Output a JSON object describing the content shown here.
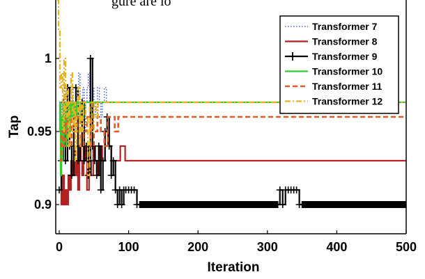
{
  "top_caption_fragment": "gure are lo",
  "chart_data": {
    "type": "line",
    "title": "",
    "xlabel": "Iteration",
    "ylabel": "Tap",
    "xlim": [
      -5,
      500
    ],
    "ylim": [
      0.88,
      1.04
    ],
    "xticks": [
      0,
      100,
      200,
      300,
      400,
      500
    ],
    "xtick_labels": [
      "0",
      "100",
      "200",
      "300",
      "400",
      "500"
    ],
    "yticks": [
      0.9,
      0.95,
      1
    ],
    "ytick_labels": [
      "0.9",
      "0.95",
      "1"
    ],
    "grid": false,
    "legend_position": "top-right",
    "series": [
      {
        "name": "Transformer 7",
        "color": "#4a5fc1",
        "style": "dotted",
        "x": [
          0,
          2,
          4,
          6,
          8,
          10,
          12,
          14,
          16,
          18,
          20,
          22,
          24,
          26,
          28,
          30,
          32,
          34,
          36,
          38,
          40,
          42,
          44,
          46,
          48,
          50,
          52,
          55,
          58,
          60,
          62,
          65,
          68,
          70,
          500
        ],
        "y": [
          0.96,
          0.95,
          0.97,
          0.94,
          0.98,
          0.96,
          0.95,
          0.97,
          0.96,
          0.98,
          0.97,
          0.95,
          0.96,
          0.98,
          0.99,
          0.97,
          0.96,
          0.98,
          0.95,
          0.97,
          0.98,
          0.99,
          0.97,
          0.96,
          0.98,
          0.97,
          0.96,
          0.98,
          0.97,
          0.96,
          0.97,
          0.98,
          0.97,
          0.97,
          0.97
        ]
      },
      {
        "name": "Transformer 8",
        "color": "#b22222",
        "style": "solid",
        "x": [
          0,
          3,
          5,
          7,
          9,
          11,
          13,
          15,
          17,
          19,
          21,
          23,
          25,
          27,
          29,
          31,
          33,
          35,
          37,
          40,
          43,
          46,
          49,
          52,
          55,
          58,
          62,
          66,
          70,
          75,
          80,
          85,
          88,
          92,
          95,
          500
        ],
        "y": [
          0.91,
          0.9,
          0.92,
          0.9,
          0.91,
          0.9,
          0.92,
          0.91,
          0.93,
          0.92,
          0.94,
          0.92,
          0.93,
          0.91,
          0.94,
          0.93,
          0.92,
          0.94,
          0.93,
          0.91,
          0.93,
          0.92,
          0.94,
          0.93,
          0.92,
          0.94,
          0.93,
          0.95,
          0.94,
          0.93,
          0.93,
          0.93,
          0.94,
          0.94,
          0.93,
          0.93
        ]
      },
      {
        "name": "Transformer 9",
        "color": "#000000",
        "style": "solid-plus",
        "x": [
          0,
          3,
          6,
          9,
          12,
          15,
          18,
          21,
          24,
          27,
          30,
          33,
          36,
          39,
          42,
          45,
          48,
          51,
          54,
          57,
          60,
          63,
          66,
          69,
          72,
          75,
          78,
          81,
          84,
          87,
          90,
          93,
          96,
          100,
          104,
          108,
          112,
          116,
          315,
          318,
          322,
          326,
          330,
          334,
          338,
          342,
          346,
          350,
          500
        ],
        "y": [
          0.91,
          0.93,
          0.97,
          0.93,
          0.98,
          0.94,
          0.92,
          0.96,
          0.98,
          0.93,
          0.94,
          0.97,
          0.93,
          0.94,
          0.92,
          1.0,
          0.94,
          0.93,
          0.92,
          0.94,
          0.91,
          0.93,
          0.95,
          0.96,
          0.94,
          0.92,
          0.93,
          0.91,
          0.9,
          0.91,
          0.9,
          0.91,
          0.91,
          0.91,
          0.91,
          0.91,
          0.9,
          0.9,
          0.9,
          0.91,
          0.9,
          0.91,
          0.91,
          0.91,
          0.91,
          0.91,
          0.9,
          0.9,
          0.9
        ]
      },
      {
        "name": "Transformer 10",
        "color": "#33cc33",
        "style": "solid",
        "x": [
          0,
          1,
          2,
          3,
          4,
          5,
          6,
          7,
          8,
          9,
          10,
          11,
          12,
          13,
          14,
          15,
          16,
          17,
          18,
          20,
          22,
          24,
          26,
          28,
          30,
          35,
          40,
          45,
          50,
          55,
          60,
          65,
          70,
          500
        ],
        "y": [
          0.95,
          0.97,
          0.92,
          0.96,
          0.93,
          0.97,
          0.94,
          0.96,
          0.95,
          0.97,
          0.94,
          0.96,
          0.95,
          0.97,
          0.96,
          0.95,
          0.97,
          0.96,
          0.97,
          0.96,
          0.97,
          0.96,
          0.97,
          0.97,
          0.96,
          0.97,
          0.97,
          0.97,
          0.97,
          0.97,
          0.97,
          0.97,
          0.97,
          0.97
        ]
      },
      {
        "name": "Transformer 11",
        "color": "#e05a2a",
        "style": "dashed",
        "x": [
          0,
          3,
          6,
          9,
          12,
          15,
          18,
          22,
          26,
          30,
          35,
          40,
          45,
          50,
          55,
          60,
          65,
          70,
          75,
          80,
          85,
          90,
          95,
          500
        ],
        "y": [
          0.93,
          0.95,
          0.94,
          0.96,
          0.95,
          0.94,
          0.96,
          0.95,
          0.96,
          0.94,
          0.95,
          0.96,
          0.94,
          0.95,
          0.96,
          0.95,
          0.94,
          0.96,
          0.96,
          0.95,
          0.96,
          0.96,
          0.96,
          0.96
        ]
      },
      {
        "name": "Transformer 12",
        "color": "#e6b422",
        "style": "dashdot",
        "x": [
          -3,
          -1,
          1,
          3,
          5,
          7,
          9,
          11,
          13,
          15,
          17,
          19,
          21,
          23,
          25,
          27,
          29,
          31,
          33,
          35,
          38,
          41,
          44,
          47,
          50,
          53,
          56,
          60,
          65,
          70,
          75,
          80,
          500
        ],
        "y": [
          1.04,
          1.02,
          0.98,
          0.99,
          0.95,
          1.0,
          0.96,
          0.98,
          0.94,
          0.97,
          0.99,
          0.95,
          0.97,
          0.93,
          0.96,
          0.98,
          0.94,
          0.97,
          0.95,
          0.97,
          0.96,
          0.92,
          0.97,
          0.95,
          0.97,
          0.96,
          0.97,
          0.97,
          0.97,
          0.97,
          0.97,
          0.97,
          0.97
        ]
      }
    ]
  }
}
